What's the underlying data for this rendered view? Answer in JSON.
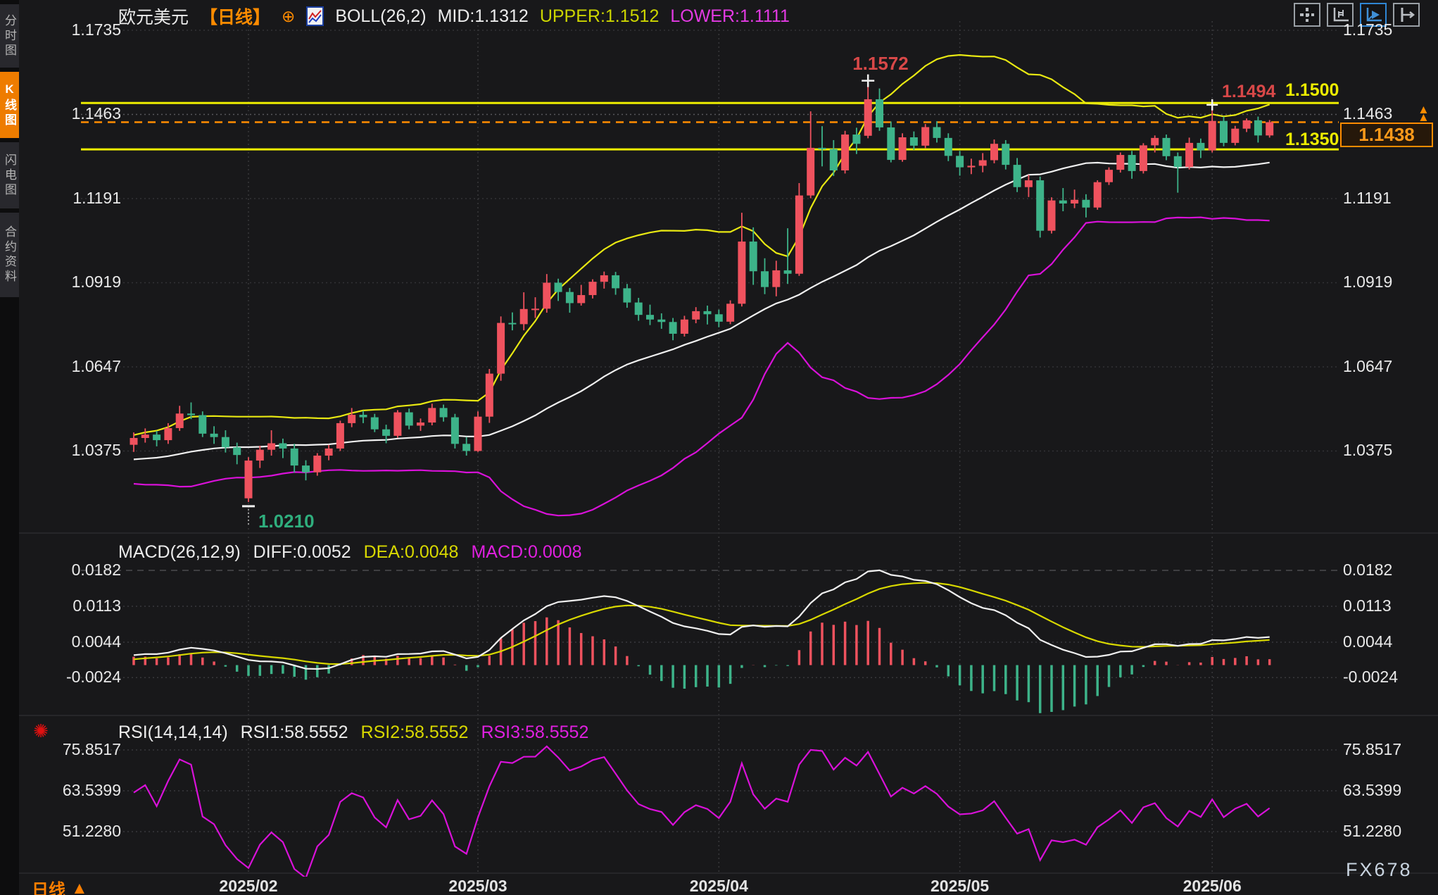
{
  "colors": {
    "background": "#18181a",
    "bull_candle": "#ef525e",
    "bear_candle": "#3db389",
    "boll_mid": "#f0f0f0",
    "boll_upper": "#e8e812",
    "boll_lower": "#d911d9",
    "level_yellow": "#ecec00",
    "current_price_orange": "#ff8c00",
    "red_label": "#d84848",
    "green_label": "#2fae7d",
    "active_tab": "#ee7c00",
    "macd_diff": "#f0f0f0",
    "macd_dea": "#d8d800",
    "rsi_line": "#d911d9"
  },
  "sidebar": {
    "tabs": [
      {
        "label": "分时图",
        "active": false
      },
      {
        "label": "K线图",
        "active": true
      },
      {
        "label": "闪电图",
        "active": false
      },
      {
        "label": "合约资料",
        "active": false
      }
    ]
  },
  "header": {
    "symbol": "欧元美元",
    "period_tag": "【日线】",
    "plus_icon": "⊕",
    "boll_label": "BOLL(26,2)",
    "mid_label": "MID:1.1312",
    "upper_label": "UPPER:1.1512",
    "lower_label": "LOWER:1.1111"
  },
  "toolbar": {
    "icons": [
      "crosshair-move",
      "axis-scale",
      "auto-follow",
      "fit-width"
    ],
    "active_icon": "auto-follow"
  },
  "price_axis": {
    "labels": [
      "1.1735",
      "1.1463",
      "1.1191",
      "1.0919",
      "1.0647",
      "1.0375"
    ]
  },
  "macd_panel": {
    "title": "MACD(26,12,9)",
    "diff_label": "DIFF:0.0052",
    "dea_label": "DEA:0.0048",
    "macd_label": "MACD:0.0008",
    "axis_labels": [
      "0.0182",
      "0.0113",
      "0.0044",
      "-0.0024"
    ]
  },
  "rsi_panel": {
    "title": "RSI(14,14,14)",
    "rsi1_label": "RSI1:58.5552",
    "rsi2_label": "RSI2:58.5552",
    "rsi3_label": "RSI3:58.5552",
    "axis_labels": [
      "75.8517",
      "63.5399",
      "51.2280"
    ],
    "alert_icon": "✺"
  },
  "levels": {
    "resistance_line": {
      "price": 1.15,
      "label": "1.1500"
    },
    "support_line": {
      "price": 1.135,
      "label": "1.1350"
    },
    "recent_high_label": {
      "price": 1.1494,
      "label": "1.1494"
    },
    "dotted_gridline_price": 1.1463,
    "current_price": {
      "price": 1.1438,
      "label": "1.1438",
      "arrow": "▲"
    }
  },
  "annotations": {
    "period_high": {
      "index": 64,
      "price": 1.1572,
      "label": "1.1572"
    },
    "recent_high": {
      "index": 94,
      "price": 1.1494
    },
    "period_low": {
      "index": 10,
      "price": 1.021,
      "label": "1.0210"
    }
  },
  "time_axis": {
    "labels": [
      {
        "text": "2025/02",
        "index": 10
      },
      {
        "text": "2025/03",
        "index": 30
      },
      {
        "text": "2025/04",
        "index": 51
      },
      {
        "text": "2025/05",
        "index": 72
      },
      {
        "text": "2025/06",
        "index": 94
      }
    ],
    "period_label": "日线",
    "period_arrow": "▲",
    "watermark": "FX678"
  },
  "chart_data": {
    "type": "candlestick+indicators",
    "title": "欧元美元 日线 (EUR/USD daily) with BOLL(26,2), MACD(26,12,9), RSI(14,14,14)",
    "price_axis_ticks": [
      1.1735,
      1.1463,
      1.1191,
      1.0919,
      1.0647,
      1.0375
    ],
    "macd_axis_ticks": [
      0.0182,
      0.0113,
      0.0044,
      -0.0024
    ],
    "rsi_axis_ticks": [
      75.8517,
      63.5399,
      51.228
    ],
    "boll": {
      "period": 26,
      "mult": 2,
      "mid": 1.1312,
      "upper": 1.1512,
      "lower": 1.1111
    },
    "macd": {
      "params": [
        26,
        12,
        9
      ],
      "diff": 0.0052,
      "dea": 0.0048,
      "macd": 0.0008
    },
    "rsi": {
      "params": [
        14,
        14,
        14
      ],
      "rsi1": 58.5552,
      "rsi2": 58.5552,
      "rsi3": 58.5552
    },
    "pre_closes": [
      1.0355,
      1.034,
      1.0322,
      1.031,
      1.0298,
      1.0285,
      1.0295,
      1.031,
      1.0328,
      1.0345,
      1.0352,
      1.0338,
      1.032,
      1.03,
      1.0312,
      1.033,
      1.0348,
      1.0362,
      1.038,
      1.0395,
      1.0405,
      1.0398,
      1.0388,
      1.04,
      1.041
    ],
    "candles_ohlc": [
      [
        1.0395,
        1.0435,
        1.0372,
        1.0417
      ],
      [
        1.0417,
        1.0448,
        1.0402,
        1.0428
      ],
      [
        1.0428,
        1.044,
        1.039,
        1.041
      ],
      [
        1.041,
        1.0465,
        1.0398,
        1.0449
      ],
      [
        1.0449,
        1.0521,
        1.044,
        1.0496
      ],
      [
        1.0496,
        1.0532,
        1.0478,
        1.0491
      ],
      [
        1.0491,
        1.0503,
        1.042,
        1.0431
      ],
      [
        1.0431,
        1.0455,
        1.0398,
        1.042
      ],
      [
        1.042,
        1.0442,
        1.037,
        1.0387
      ],
      [
        1.0387,
        1.0402,
        1.0332,
        1.0362
      ],
      [
        1.0222,
        1.0355,
        1.021,
        1.0344
      ],
      [
        1.0344,
        1.0392,
        1.032,
        1.0379
      ],
      [
        1.0379,
        1.0442,
        1.036,
        1.04
      ],
      [
        1.04,
        1.0415,
        1.0352,
        1.0383
      ],
      [
        1.0383,
        1.0398,
        1.0305,
        1.0328
      ],
      [
        1.0328,
        1.0345,
        1.028,
        1.0306
      ],
      [
        1.0306,
        1.0368,
        1.0295,
        1.036
      ],
      [
        1.036,
        1.0395,
        1.0345,
        1.0383
      ],
      [
        1.0383,
        1.0473,
        1.0375,
        1.0465
      ],
      [
        1.0465,
        1.0514,
        1.0452,
        1.0492
      ],
      [
        1.0492,
        1.0505,
        1.0465,
        1.0484
      ],
      [
        1.0484,
        1.0495,
        1.0436,
        1.0445
      ],
      [
        1.0445,
        1.046,
        1.04,
        1.0424
      ],
      [
        1.0424,
        1.0507,
        1.0418,
        1.05
      ],
      [
        1.05,
        1.0512,
        1.0445,
        1.0457
      ],
      [
        1.0457,
        1.048,
        1.044,
        1.0467
      ],
      [
        1.0467,
        1.0528,
        1.0458,
        1.0514
      ],
      [
        1.0514,
        1.0525,
        1.047,
        1.0484
      ],
      [
        1.0484,
        1.0495,
        1.0383,
        1.0398
      ],
      [
        1.0398,
        1.042,
        1.036,
        1.0375
      ],
      [
        1.0375,
        1.0503,
        1.0372,
        1.0486
      ],
      [
        1.0486,
        1.064,
        1.0466,
        1.0625
      ],
      [
        1.0625,
        1.081,
        1.0602,
        1.0789
      ],
      [
        1.0789,
        1.0823,
        1.0765,
        1.0785
      ],
      [
        1.0785,
        1.0888,
        1.0765,
        1.0834
      ],
      [
        1.0834,
        1.0872,
        1.0805,
        1.0835
      ],
      [
        1.0835,
        1.0947,
        1.0822,
        1.0919
      ],
      [
        1.0919,
        1.0932,
        1.086,
        1.0889
      ],
      [
        1.0889,
        1.0902,
        1.0822,
        1.0853
      ],
      [
        1.0853,
        1.0912,
        1.0845,
        1.0879
      ],
      [
        1.0879,
        1.093,
        1.0868,
        1.0922
      ],
      [
        1.0922,
        1.0955,
        1.09,
        1.0943
      ],
      [
        1.0943,
        1.0954,
        1.088,
        1.0901
      ],
      [
        1.0901,
        1.0915,
        1.0838,
        1.0855
      ],
      [
        1.0855,
        1.087,
        1.0796,
        1.0815
      ],
      [
        1.0815,
        1.0848,
        1.0782,
        1.08
      ],
      [
        1.08,
        1.082,
        1.077,
        1.0792
      ],
      [
        1.0792,
        1.0805,
        1.0733,
        1.0754
      ],
      [
        1.0754,
        1.0812,
        1.0745,
        1.08
      ],
      [
        1.08,
        1.084,
        1.0788,
        1.0827
      ],
      [
        1.0827,
        1.0845,
        1.0784,
        1.0817
      ],
      [
        1.0817,
        1.0832,
        1.0775,
        1.0793
      ],
      [
        1.0793,
        1.0862,
        1.0785,
        1.0851
      ],
      [
        1.0851,
        1.1145,
        1.0842,
        1.1052
      ],
      [
        1.1052,
        1.1098,
        1.0912,
        1.0956
      ],
      [
        1.0956,
        1.0998,
        1.0882,
        1.0905
      ],
      [
        1.0905,
        1.099,
        1.0875,
        1.0959
      ],
      [
        1.0959,
        1.1095,
        1.0915,
        1.0948
      ],
      [
        1.0948,
        1.1241,
        1.0941,
        1.1201
      ],
      [
        1.1201,
        1.1473,
        1.1192,
        1.1355
      ],
      [
        1.1355,
        1.1425,
        1.1295,
        1.1351
      ],
      [
        1.1351,
        1.138,
        1.1264,
        1.1282
      ],
      [
        1.1282,
        1.141,
        1.1272,
        1.1398
      ],
      [
        1.1398,
        1.142,
        1.1335,
        1.1368
      ],
      [
        1.1394,
        1.1572,
        1.1386,
        1.1512
      ],
      [
        1.1512,
        1.1547,
        1.141,
        1.1421
      ],
      [
        1.1421,
        1.144,
        1.1308,
        1.1316
      ],
      [
        1.1316,
        1.1402,
        1.131,
        1.1389
      ],
      [
        1.1389,
        1.1408,
        1.1348,
        1.1362
      ],
      [
        1.1362,
        1.1432,
        1.1354,
        1.1422
      ],
      [
        1.1422,
        1.1441,
        1.1372,
        1.1387
      ],
      [
        1.1387,
        1.1402,
        1.1312,
        1.1329
      ],
      [
        1.1329,
        1.1345,
        1.1265,
        1.1292
      ],
      [
        1.1292,
        1.132,
        1.127,
        1.1297
      ],
      [
        1.1297,
        1.1338,
        1.1276,
        1.1315
      ],
      [
        1.1315,
        1.1382,
        1.1305,
        1.1368
      ],
      [
        1.1368,
        1.138,
        1.1285,
        1.13
      ],
      [
        1.13,
        1.1322,
        1.1212,
        1.1228
      ],
      [
        1.1228,
        1.1268,
        1.1196,
        1.125
      ],
      [
        1.125,
        1.1262,
        1.1065,
        1.1087
      ],
      [
        1.1087,
        1.1195,
        1.1078,
        1.1185
      ],
      [
        1.1185,
        1.1225,
        1.115,
        1.1175
      ],
      [
        1.1175,
        1.122,
        1.116,
        1.1187
      ],
      [
        1.1187,
        1.1205,
        1.113,
        1.1162
      ],
      [
        1.1162,
        1.125,
        1.1155,
        1.1244
      ],
      [
        1.1244,
        1.1292,
        1.1235,
        1.1284
      ],
      [
        1.1284,
        1.134,
        1.1275,
        1.1332
      ],
      [
        1.1332,
        1.1345,
        1.1255,
        1.128
      ],
      [
        1.128,
        1.137,
        1.1272,
        1.1363
      ],
      [
        1.1363,
        1.1395,
        1.134,
        1.1387
      ],
      [
        1.1387,
        1.1398,
        1.1315,
        1.1328
      ],
      [
        1.1328,
        1.134,
        1.121,
        1.1293
      ],
      [
        1.1293,
        1.1388,
        1.1285,
        1.1371
      ],
      [
        1.1371,
        1.1385,
        1.1322,
        1.1347
      ],
      [
        1.1347,
        1.1494,
        1.134,
        1.1442
      ],
      [
        1.1442,
        1.1456,
        1.136,
        1.1371
      ],
      [
        1.1371,
        1.1426,
        1.1363,
        1.1417
      ],
      [
        1.1417,
        1.145,
        1.1406,
        1.1444
      ],
      [
        1.1444,
        1.1456,
        1.1372,
        1.1395
      ],
      [
        1.1395,
        1.1445,
        1.1388,
        1.1438
      ]
    ]
  }
}
